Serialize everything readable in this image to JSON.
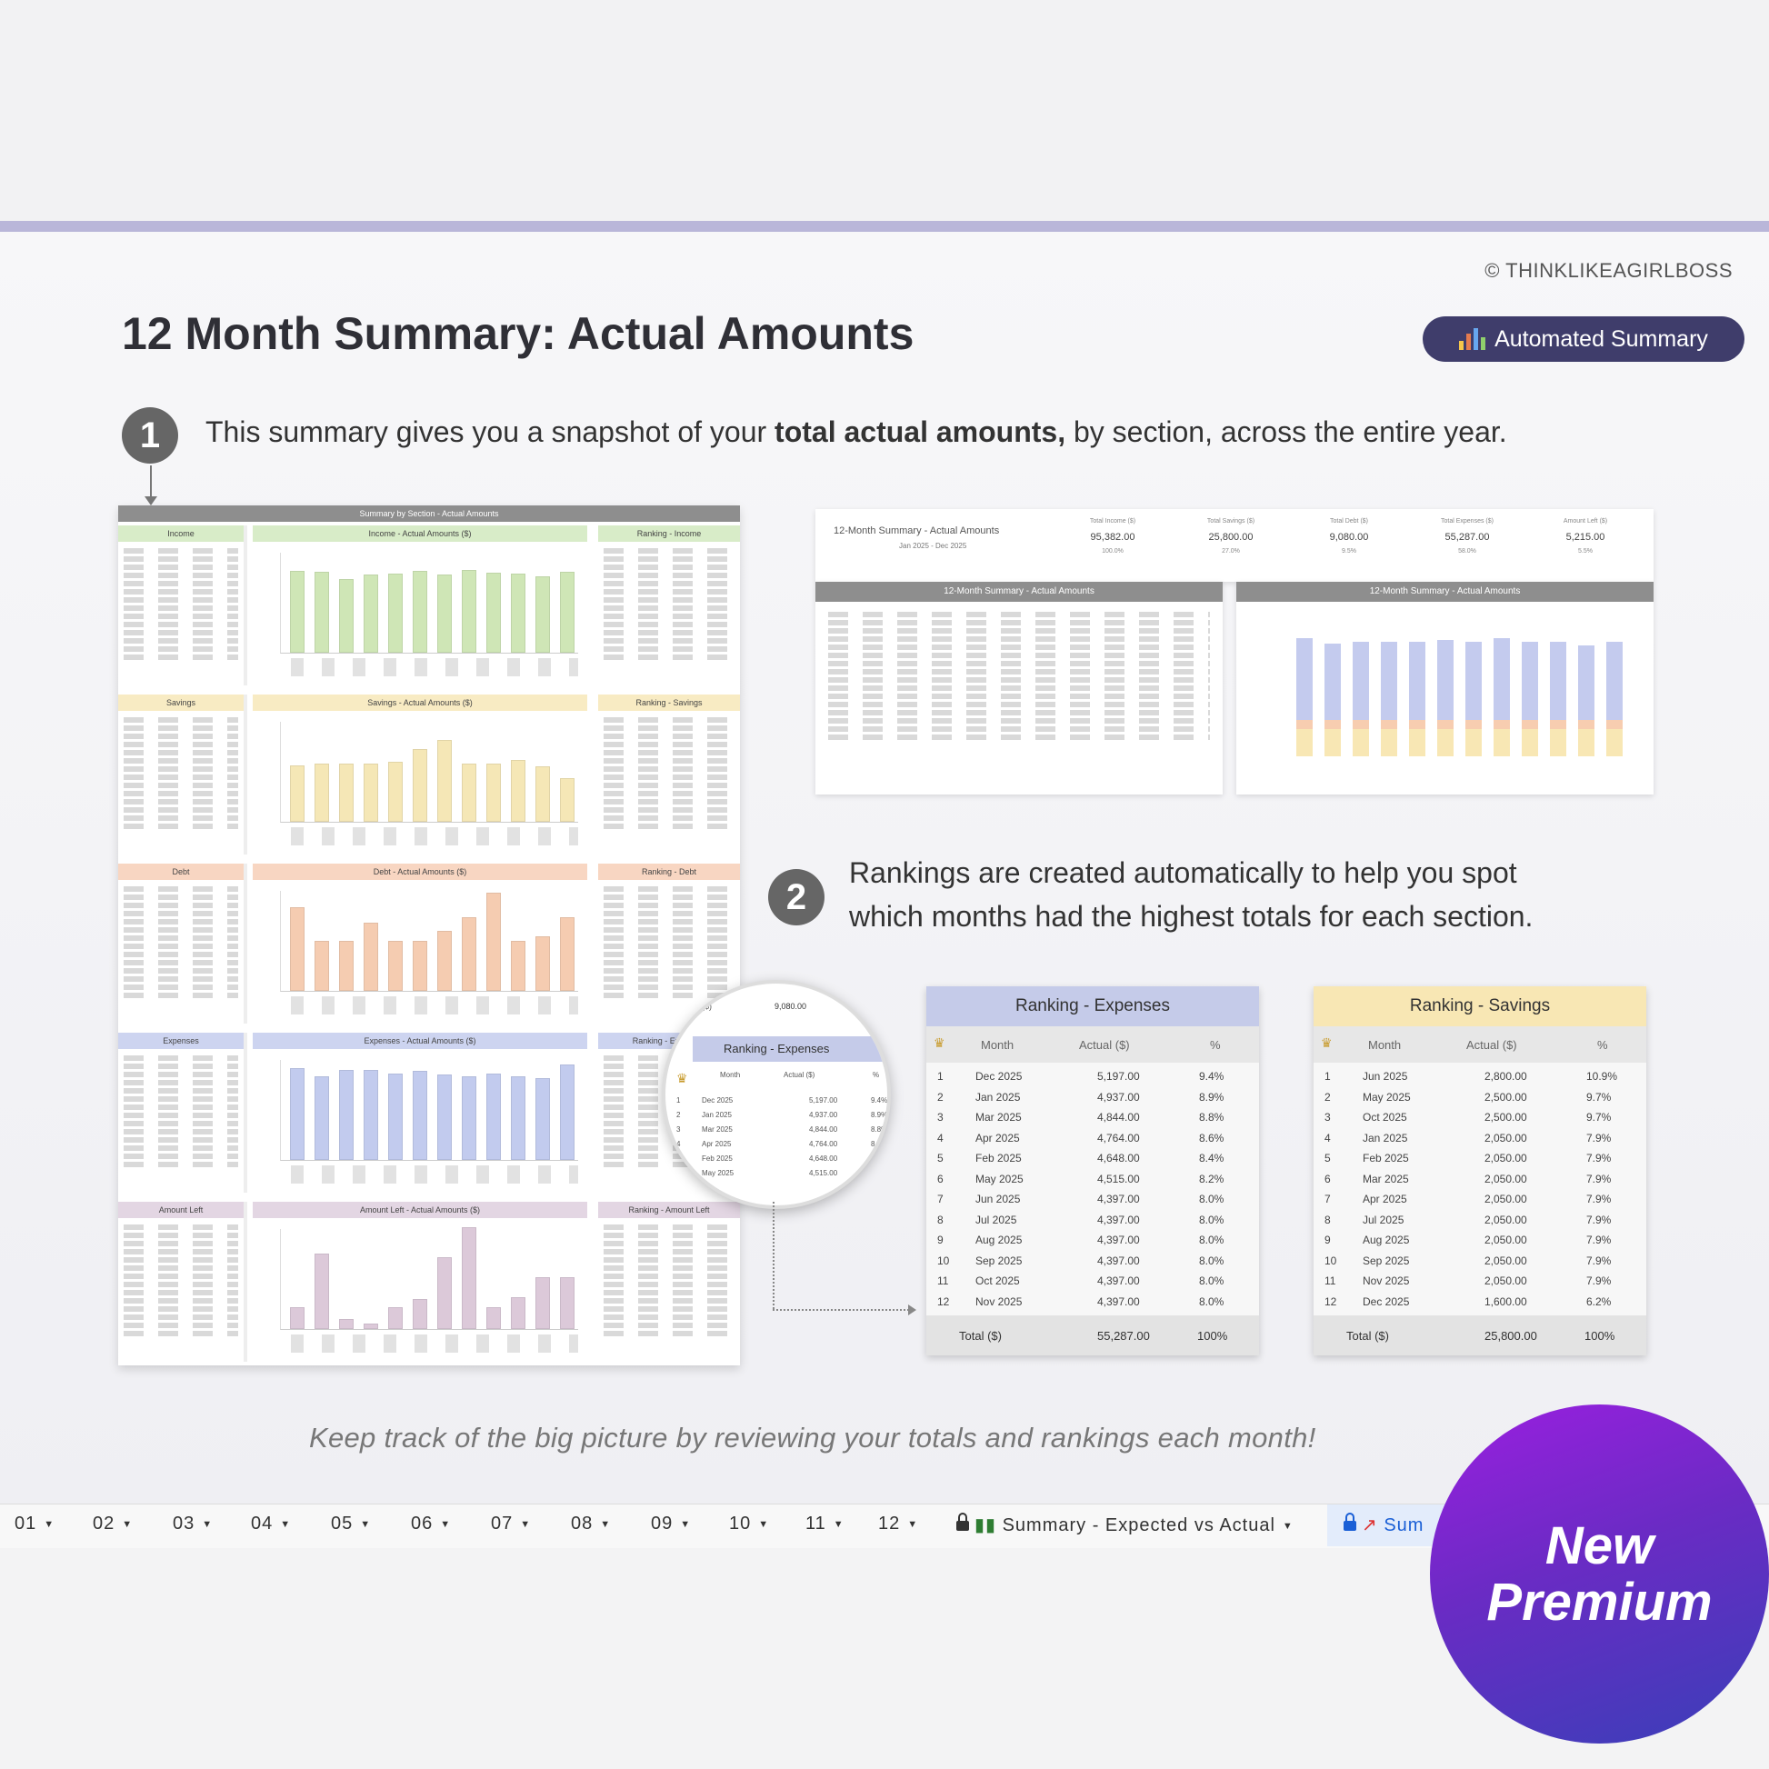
{
  "copyright": "© THINKLIKEAGIRLBOSS",
  "title": "12 Month Summary: Actual Amounts",
  "badge_label": "Automated Summary",
  "step1": {
    "number": "1",
    "text_pre": "This summary gives you a snapshot of your ",
    "text_bold": "total actual amounts,",
    "text_post": " by section, across the entire year."
  },
  "step2": {
    "number": "2",
    "line1": "Rankings are created automatically to help you spot",
    "line2": "which months had the highest totals for each section."
  },
  "sheet": {
    "header": "Summary by Section - Actual Amounts",
    "sections": [
      {
        "left": "Income",
        "chart": "Income - Actual Amounts ($)",
        "right": "Ranking - Income",
        "color": "#d8ecc8",
        "bar": "#cfe6b6"
      },
      {
        "left": "Savings",
        "chart": "Savings - Actual Amounts ($)",
        "right": "Ranking - Savings",
        "color": "#f8ebc3",
        "bar": "#f5e7b6"
      },
      {
        "left": "Debt",
        "chart": "Debt - Actual Amounts ($)",
        "right": "Ranking - Debt",
        "color": "#f8d6c2",
        "bar": "#f5ccb1"
      },
      {
        "left": "Expenses",
        "chart": "Expenses - Actual Amounts ($)",
        "right": "Ranking - Expenses",
        "color": "#cdd4f0",
        "bar": "#c2cbee"
      },
      {
        "left": "Amount Left",
        "chart": "Amount Left - Actual Amounts ($)",
        "right": "Ranking - Amount Left",
        "color": "#e3d6e3",
        "bar": "#dcc9d9"
      }
    ]
  },
  "magnifier": {
    "total_label": "($)",
    "total_value": "9,080.00",
    "title": "Ranking - Expenses",
    "col_month": "Month",
    "col_actual": "Actual ($)",
    "col_pct": "%",
    "rows": [
      {
        "rank": "1",
        "month": "Dec 2025",
        "value": "5,197.00",
        "pct": "9.4%"
      },
      {
        "rank": "2",
        "month": "Jan 2025",
        "value": "4,937.00",
        "pct": "8.9%"
      },
      {
        "rank": "3",
        "month": "Mar 2025",
        "value": "4,844.00",
        "pct": "8.8%"
      },
      {
        "rank": "4",
        "month": "Apr 2025",
        "value": "4,764.00",
        "pct": "8.6%"
      },
      {
        "rank": "5",
        "month": "Feb 2025",
        "value": "4,648.00",
        "pct": "8.4%"
      },
      {
        "rank": "6",
        "month": "May 2025",
        "value": "4,515.00",
        "pct": "8.2%"
      }
    ]
  },
  "summary": {
    "title": "12-Month Summary - Actual Amounts",
    "period": "Jan 2025 - Dec 2025",
    "kpis": [
      {
        "label": "Total Income ($)",
        "value": "95,382.00",
        "pct": "100.0%"
      },
      {
        "label": "Total Savings ($)",
        "value": "25,800.00",
        "pct": "27.0%"
      },
      {
        "label": "Total Debt ($)",
        "value": "9,080.00",
        "pct": "9.5%"
      },
      {
        "label": "Total Expenses ($)",
        "value": "55,287.00",
        "pct": "58.0%"
      },
      {
        "label": "Amount Left ($)",
        "value": "5,215.00",
        "pct": "5.5%"
      }
    ],
    "table_title": "12-Month Summary - Actual Amounts",
    "chart_title": "12-Month Summary - Actual Amounts"
  },
  "rank_expenses": {
    "title": "Ranking - Expenses",
    "col_month": "Month",
    "col_actual": "Actual ($)",
    "col_pct": "%",
    "rows": [
      {
        "rank": "1",
        "month": "Dec 2025",
        "value": "5,197.00",
        "pct": "9.4%"
      },
      {
        "rank": "2",
        "month": "Jan 2025",
        "value": "4,937.00",
        "pct": "8.9%"
      },
      {
        "rank": "3",
        "month": "Mar 2025",
        "value": "4,844.00",
        "pct": "8.8%"
      },
      {
        "rank": "4",
        "month": "Apr 2025",
        "value": "4,764.00",
        "pct": "8.6%"
      },
      {
        "rank": "5",
        "month": "Feb 2025",
        "value": "4,648.00",
        "pct": "8.4%"
      },
      {
        "rank": "6",
        "month": "May 2025",
        "value": "4,515.00",
        "pct": "8.2%"
      },
      {
        "rank": "7",
        "month": "Jun 2025",
        "value": "4,397.00",
        "pct": "8.0%"
      },
      {
        "rank": "8",
        "month": "Jul 2025",
        "value": "4,397.00",
        "pct": "8.0%"
      },
      {
        "rank": "9",
        "month": "Aug 2025",
        "value": "4,397.00",
        "pct": "8.0%"
      },
      {
        "rank": "10",
        "month": "Sep 2025",
        "value": "4,397.00",
        "pct": "8.0%"
      },
      {
        "rank": "11",
        "month": "Oct 2025",
        "value": "4,397.00",
        "pct": "8.0%"
      },
      {
        "rank": "12",
        "month": "Nov 2025",
        "value": "4,397.00",
        "pct": "8.0%"
      }
    ],
    "total_label": "Total ($)",
    "total_value": "55,287.00",
    "total_pct": "100%"
  },
  "rank_savings": {
    "title": "Ranking - Savings",
    "col_month": "Month",
    "col_actual": "Actual ($)",
    "col_pct": "%",
    "rows": [
      {
        "rank": "1",
        "month": "Jun 2025",
        "value": "2,800.00",
        "pct": "10.9%"
      },
      {
        "rank": "2",
        "month": "May 2025",
        "value": "2,500.00",
        "pct": "9.7%"
      },
      {
        "rank": "3",
        "month": "Oct 2025",
        "value": "2,500.00",
        "pct": "9.7%"
      },
      {
        "rank": "4",
        "month": "Jan 2025",
        "value": "2,050.00",
        "pct": "7.9%"
      },
      {
        "rank": "5",
        "month": "Feb 2025",
        "value": "2,050.00",
        "pct": "7.9%"
      },
      {
        "rank": "6",
        "month": "Mar 2025",
        "value": "2,050.00",
        "pct": "7.9%"
      },
      {
        "rank": "7",
        "month": "Apr 2025",
        "value": "2,050.00",
        "pct": "7.9%"
      },
      {
        "rank": "8",
        "month": "Jul 2025",
        "value": "2,050.00",
        "pct": "7.9%"
      },
      {
        "rank": "9",
        "month": "Aug 2025",
        "value": "2,050.00",
        "pct": "7.9%"
      },
      {
        "rank": "10",
        "month": "Sep 2025",
        "value": "2,050.00",
        "pct": "7.9%"
      },
      {
        "rank": "11",
        "month": "Nov 2025",
        "value": "2,050.00",
        "pct": "7.9%"
      },
      {
        "rank": "12",
        "month": "Dec 2025",
        "value": "1,600.00",
        "pct": "6.2%"
      }
    ],
    "total_label": "Total ($)",
    "total_value": "25,800.00",
    "total_pct": "100%"
  },
  "footer": "Keep track of the big picture by reviewing your totals and rankings each month!",
  "tabs": [
    "01",
    "02",
    "03",
    "04",
    "05",
    "06",
    "07",
    "08",
    "09",
    "10",
    "11",
    "12"
  ],
  "tab_summary_ev": "Summary - Expected vs Actual",
  "tab_active": "Sum",
  "premium": {
    "line1": "New",
    "line2": "Premium"
  }
}
